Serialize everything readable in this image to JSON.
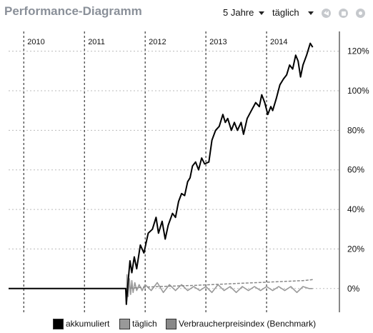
{
  "header": {
    "title": "Performance-Diagramm",
    "period_value": "5 Jahre",
    "interval_value": "täglich",
    "icons": [
      "prev-icon",
      "save-icon",
      "settings-icon"
    ]
  },
  "colors": {
    "accumulated": "#000000",
    "daily": "#999999",
    "benchmark": "#888888",
    "grid": "#bbbbbb"
  },
  "chart_data": {
    "type": "line",
    "x_axis": {
      "kind": "year",
      "labels": [
        "2010",
        "2011",
        "2012",
        "2013",
        "2014"
      ],
      "range": [
        2009.75,
        2015.2
      ]
    },
    "y_axis": {
      "position": "right",
      "range": [
        -12,
        130
      ],
      "ticks": [
        0,
        20,
        40,
        60,
        80,
        100,
        120
      ],
      "tick_labels": [
        "0%",
        "20%",
        "40%",
        "60%",
        "80%",
        "100%",
        "120%"
      ]
    },
    "grid": {
      "horizontal": true,
      "vertical_years": true
    },
    "legend_position": "bottom",
    "series": [
      {
        "name": "akkumuliert",
        "points": [
          [
            2009.75,
            0
          ],
          [
            2011.68,
            0
          ],
          [
            2011.69,
            -8
          ],
          [
            2011.72,
            4
          ],
          [
            2011.75,
            14
          ],
          [
            2011.78,
            8
          ],
          [
            2011.82,
            16
          ],
          [
            2011.86,
            10
          ],
          [
            2011.92,
            22
          ],
          [
            2011.98,
            18
          ],
          [
            2012.05,
            28
          ],
          [
            2012.12,
            30
          ],
          [
            2012.18,
            36
          ],
          [
            2012.22,
            28
          ],
          [
            2012.28,
            34
          ],
          [
            2012.33,
            25
          ],
          [
            2012.38,
            32
          ],
          [
            2012.45,
            38
          ],
          [
            2012.5,
            36
          ],
          [
            2012.55,
            44
          ],
          [
            2012.6,
            48
          ],
          [
            2012.65,
            47
          ],
          [
            2012.7,
            54
          ],
          [
            2012.74,
            56
          ],
          [
            2012.78,
            62
          ],
          [
            2012.83,
            64
          ],
          [
            2012.88,
            60
          ],
          [
            2012.93,
            66
          ],
          [
            2012.98,
            63
          ],
          [
            2013.05,
            64
          ],
          [
            2013.1,
            75
          ],
          [
            2013.16,
            80
          ],
          [
            2013.22,
            82
          ],
          [
            2013.28,
            88
          ],
          [
            2013.32,
            84
          ],
          [
            2013.36,
            86
          ],
          [
            2013.42,
            80
          ],
          [
            2013.47,
            84
          ],
          [
            2013.52,
            80
          ],
          [
            2013.58,
            84
          ],
          [
            2013.62,
            78
          ],
          [
            2013.68,
            86
          ],
          [
            2013.75,
            90
          ],
          [
            2013.82,
            94
          ],
          [
            2013.88,
            92
          ],
          [
            2013.92,
            98
          ],
          [
            2013.97,
            94
          ],
          [
            2014.02,
            88
          ],
          [
            2014.07,
            92
          ],
          [
            2014.1,
            90
          ],
          [
            2014.16,
            96
          ],
          [
            2014.22,
            103
          ],
          [
            2014.28,
            106
          ],
          [
            2014.33,
            108
          ],
          [
            2014.38,
            113
          ],
          [
            2014.43,
            111
          ],
          [
            2014.48,
            118
          ],
          [
            2014.52,
            115
          ],
          [
            2014.56,
            107
          ],
          [
            2014.6,
            113
          ],
          [
            2014.66,
            118
          ],
          [
            2014.72,
            124
          ],
          [
            2014.76,
            122
          ]
        ]
      },
      {
        "name": "täglich",
        "points": [
          [
            2011.68,
            0
          ],
          [
            2011.69,
            -7
          ],
          [
            2011.7,
            7
          ],
          [
            2011.72,
            -4
          ],
          [
            2011.74,
            5
          ],
          [
            2011.76,
            -3
          ],
          [
            2011.78,
            4
          ],
          [
            2011.8,
            -2
          ],
          [
            2011.83,
            3
          ],
          [
            2011.86,
            -1
          ],
          [
            2011.9,
            2
          ],
          [
            2011.95,
            -1
          ],
          [
            2012.0,
            2
          ],
          [
            2012.1,
            -1
          ],
          [
            2012.2,
            3
          ],
          [
            2012.3,
            -2
          ],
          [
            2012.4,
            2
          ],
          [
            2012.5,
            -1
          ],
          [
            2012.6,
            2
          ],
          [
            2012.7,
            -1
          ],
          [
            2012.8,
            1
          ],
          [
            2012.9,
            -1
          ],
          [
            2013.0,
            1
          ],
          [
            2013.1,
            -2
          ],
          [
            2013.2,
            2
          ],
          [
            2013.3,
            -1
          ],
          [
            2013.4,
            1
          ],
          [
            2013.5,
            -2
          ],
          [
            2013.6,
            1
          ],
          [
            2013.7,
            -1
          ],
          [
            2013.8,
            1
          ],
          [
            2013.9,
            -1
          ],
          [
            2014.0,
            1
          ],
          [
            2014.1,
            -1
          ],
          [
            2014.2,
            1
          ],
          [
            2014.3,
            -1
          ],
          [
            2014.4,
            1
          ],
          [
            2014.5,
            -2
          ],
          [
            2014.6,
            1
          ],
          [
            2014.7,
            0
          ],
          [
            2014.76,
            0
          ]
        ]
      },
      {
        "name": "Verbraucherpreisindex (Benchmark)",
        "points": [
          [
            2011.68,
            0
          ],
          [
            2011.9,
            0.5
          ],
          [
            2012.2,
            1
          ],
          [
            2012.5,
            1.3
          ],
          [
            2012.8,
            1.6
          ],
          [
            2013.1,
            2
          ],
          [
            2013.4,
            2.4
          ],
          [
            2013.7,
            2.8
          ],
          [
            2014.0,
            3.2
          ],
          [
            2014.3,
            3.6
          ],
          [
            2014.6,
            4
          ],
          [
            2014.76,
            4.5
          ]
        ]
      }
    ]
  },
  "legend": {
    "items": [
      {
        "label": "akkumuliert",
        "color": "#000000"
      },
      {
        "label": "täglich",
        "color": "#999999"
      },
      {
        "label": "Verbraucherpreisindex (Benchmark)",
        "color": "#888888"
      }
    ]
  }
}
